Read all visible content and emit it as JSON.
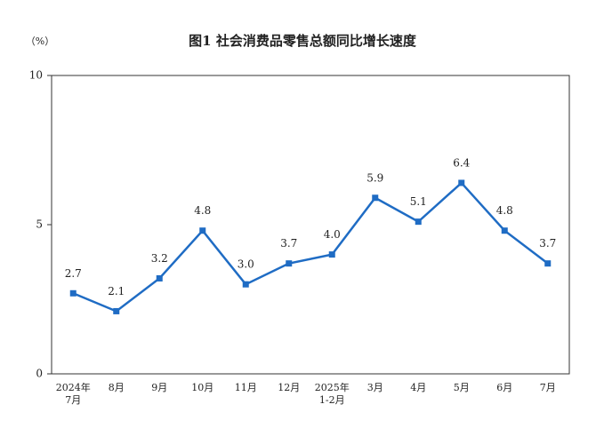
{
  "chart_data": {
    "type": "line",
    "title": "图1  社会消费品零售总额同比增长速度",
    "y_unit": "（%）",
    "categories": [
      "2024年\n7月",
      "8月",
      "9月",
      "10月",
      "11月",
      "12月",
      "2025年\n1-2月",
      "3月",
      "4月",
      "5月",
      "6月",
      "7月"
    ],
    "values": [
      2.7,
      2.1,
      3.2,
      4.8,
      3.0,
      3.7,
      4.0,
      5.9,
      5.1,
      6.4,
      4.8,
      3.7
    ],
    "value_labels": [
      "2.7",
      "2.1",
      "3.2",
      "4.8",
      "3.0",
      "3.7",
      "4.0",
      "5.9",
      "5.1",
      "6.4",
      "4.8",
      "3.7"
    ],
    "color": "#1f6cc4",
    "ylim": [
      0,
      10
    ],
    "yticks": [
      0,
      5,
      10
    ],
    "grid": false
  }
}
